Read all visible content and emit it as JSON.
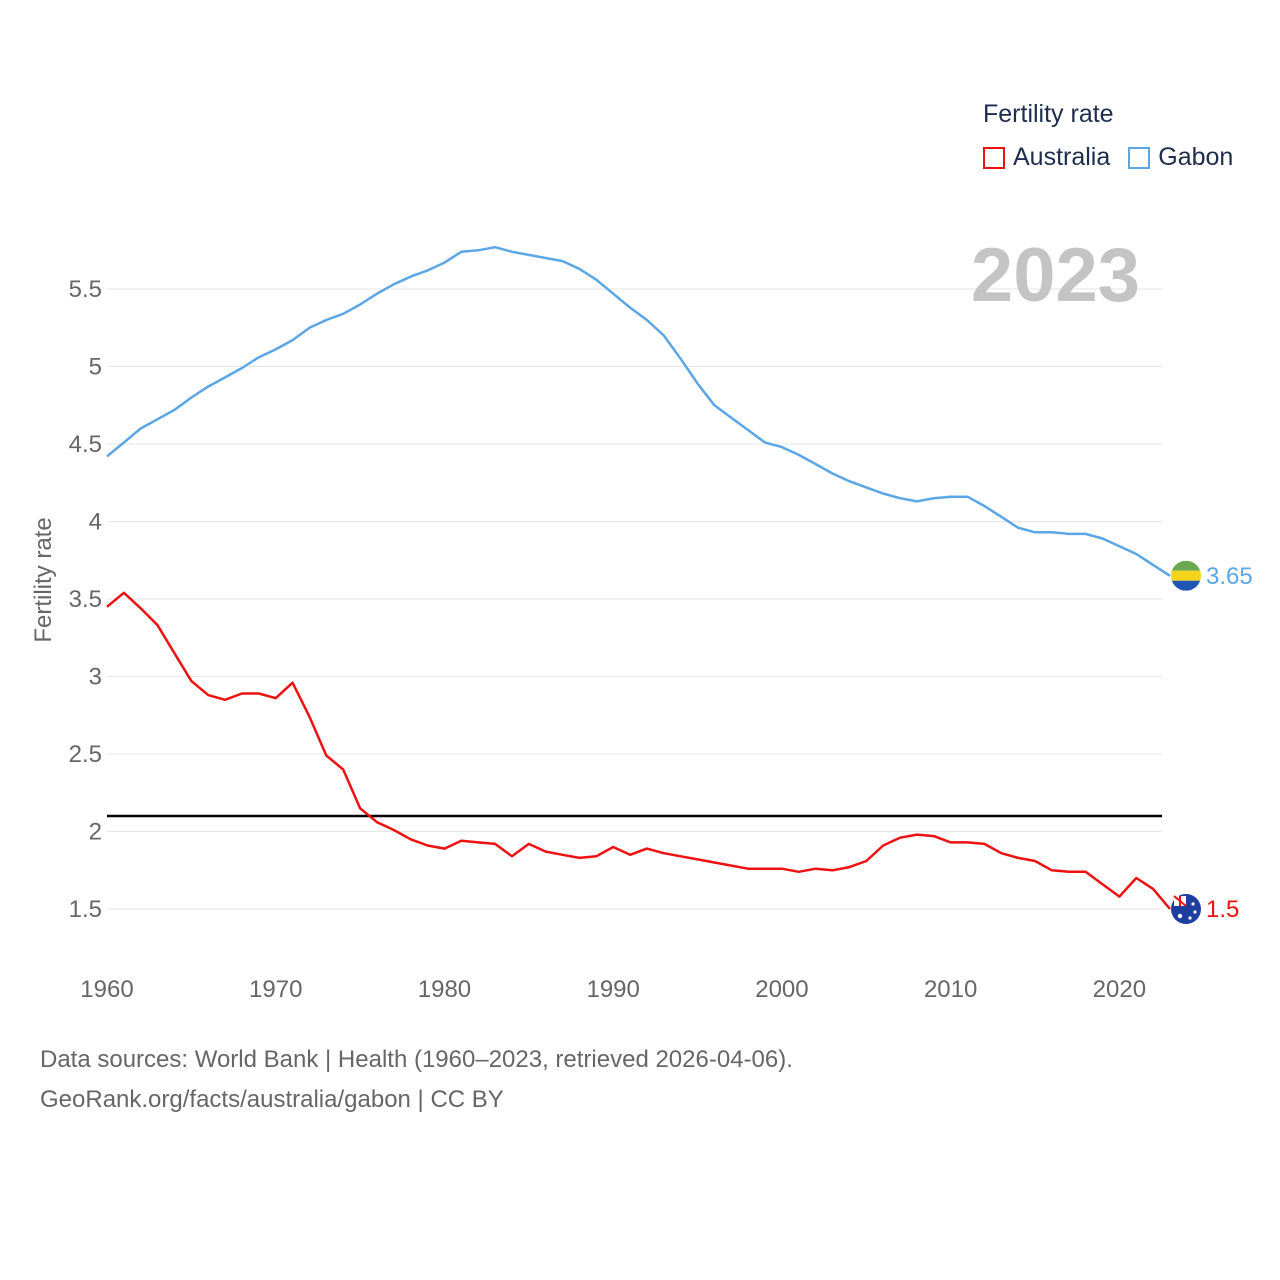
{
  "legend": {
    "title": "Fertility rate",
    "items": [
      {
        "name": "Australia",
        "color": "#ee1111"
      },
      {
        "name": "Gabon",
        "color": "#5ba6e6"
      }
    ]
  },
  "year_label": "2023",
  "footer": {
    "line1": "Data sources: World Bank | Health (1960–2023, retrieved 2026-04-06).",
    "line2": "GeoRank.org/facts/australia/gabon | CC BY"
  },
  "chart_data": {
    "type": "line",
    "ylabel": "Fertility rate",
    "xlabel": "",
    "xlim": [
      1960,
      2023
    ],
    "ylim": [
      1.2,
      5.9
    ],
    "x_ticks": [
      1960,
      1970,
      1980,
      1990,
      2000,
      2010,
      2020
    ],
    "y_ticks": [
      1.5,
      2,
      2.5,
      3,
      3.5,
      4,
      4.5,
      5,
      5.5
    ],
    "y_tick_labels": [
      "1.5",
      "2",
      "2.5",
      "3",
      "3.5",
      "4",
      "4.5",
      "5",
      "5.5"
    ],
    "reference_line": 2.1,
    "x": [
      1960,
      1961,
      1962,
      1963,
      1964,
      1965,
      1966,
      1967,
      1968,
      1969,
      1970,
      1971,
      1972,
      1973,
      1974,
      1975,
      1976,
      1977,
      1978,
      1979,
      1980,
      1981,
      1982,
      1983,
      1984,
      1985,
      1986,
      1987,
      1988,
      1989,
      1990,
      1991,
      1992,
      1993,
      1994,
      1995,
      1996,
      1997,
      1998,
      1999,
      2000,
      2001,
      2002,
      2003,
      2004,
      2005,
      2006,
      2007,
      2008,
      2009,
      2010,
      2011,
      2012,
      2013,
      2014,
      2015,
      2016,
      2017,
      2018,
      2019,
      2020,
      2021,
      2022,
      2023
    ],
    "series": [
      {
        "name": "Australia",
        "color": "#ee1111",
        "end_label": "1.5",
        "values": [
          3.45,
          3.54,
          3.44,
          3.33,
          3.15,
          2.97,
          2.88,
          2.85,
          2.89,
          2.89,
          2.86,
          2.96,
          2.74,
          2.49,
          2.4,
          2.15,
          2.06,
          2.01,
          1.95,
          1.91,
          1.89,
          1.94,
          1.93,
          1.92,
          1.84,
          1.92,
          1.87,
          1.85,
          1.83,
          1.84,
          1.9,
          1.85,
          1.89,
          1.86,
          1.84,
          1.82,
          1.8,
          1.78,
          1.76,
          1.76,
          1.76,
          1.74,
          1.76,
          1.75,
          1.77,
          1.81,
          1.91,
          1.96,
          1.98,
          1.97,
          1.93,
          1.93,
          1.92,
          1.86,
          1.83,
          1.81,
          1.75,
          1.74,
          1.74,
          1.66,
          1.58,
          1.7,
          1.63,
          1.5
        ]
      },
      {
        "name": "Gabon",
        "color": "#5ba6e6",
        "end_label": "3.65",
        "values": [
          4.42,
          4.51,
          4.6,
          4.66,
          4.72,
          4.8,
          4.87,
          4.93,
          4.99,
          5.06,
          5.11,
          5.17,
          5.25,
          5.3,
          5.34,
          5.4,
          5.47,
          5.53,
          5.58,
          5.62,
          5.67,
          5.74,
          5.75,
          5.77,
          5.74,
          5.72,
          5.7,
          5.68,
          5.63,
          5.56,
          5.47,
          5.38,
          5.3,
          5.2,
          5.05,
          4.89,
          4.75,
          4.67,
          4.59,
          4.51,
          4.48,
          4.43,
          4.37,
          4.31,
          4.26,
          4.22,
          4.18,
          4.15,
          4.13,
          4.15,
          4.16,
          4.16,
          4.1,
          4.03,
          3.96,
          3.93,
          3.93,
          3.92,
          3.92,
          3.89,
          3.84,
          3.79,
          3.72,
          3.65
        ]
      }
    ]
  }
}
